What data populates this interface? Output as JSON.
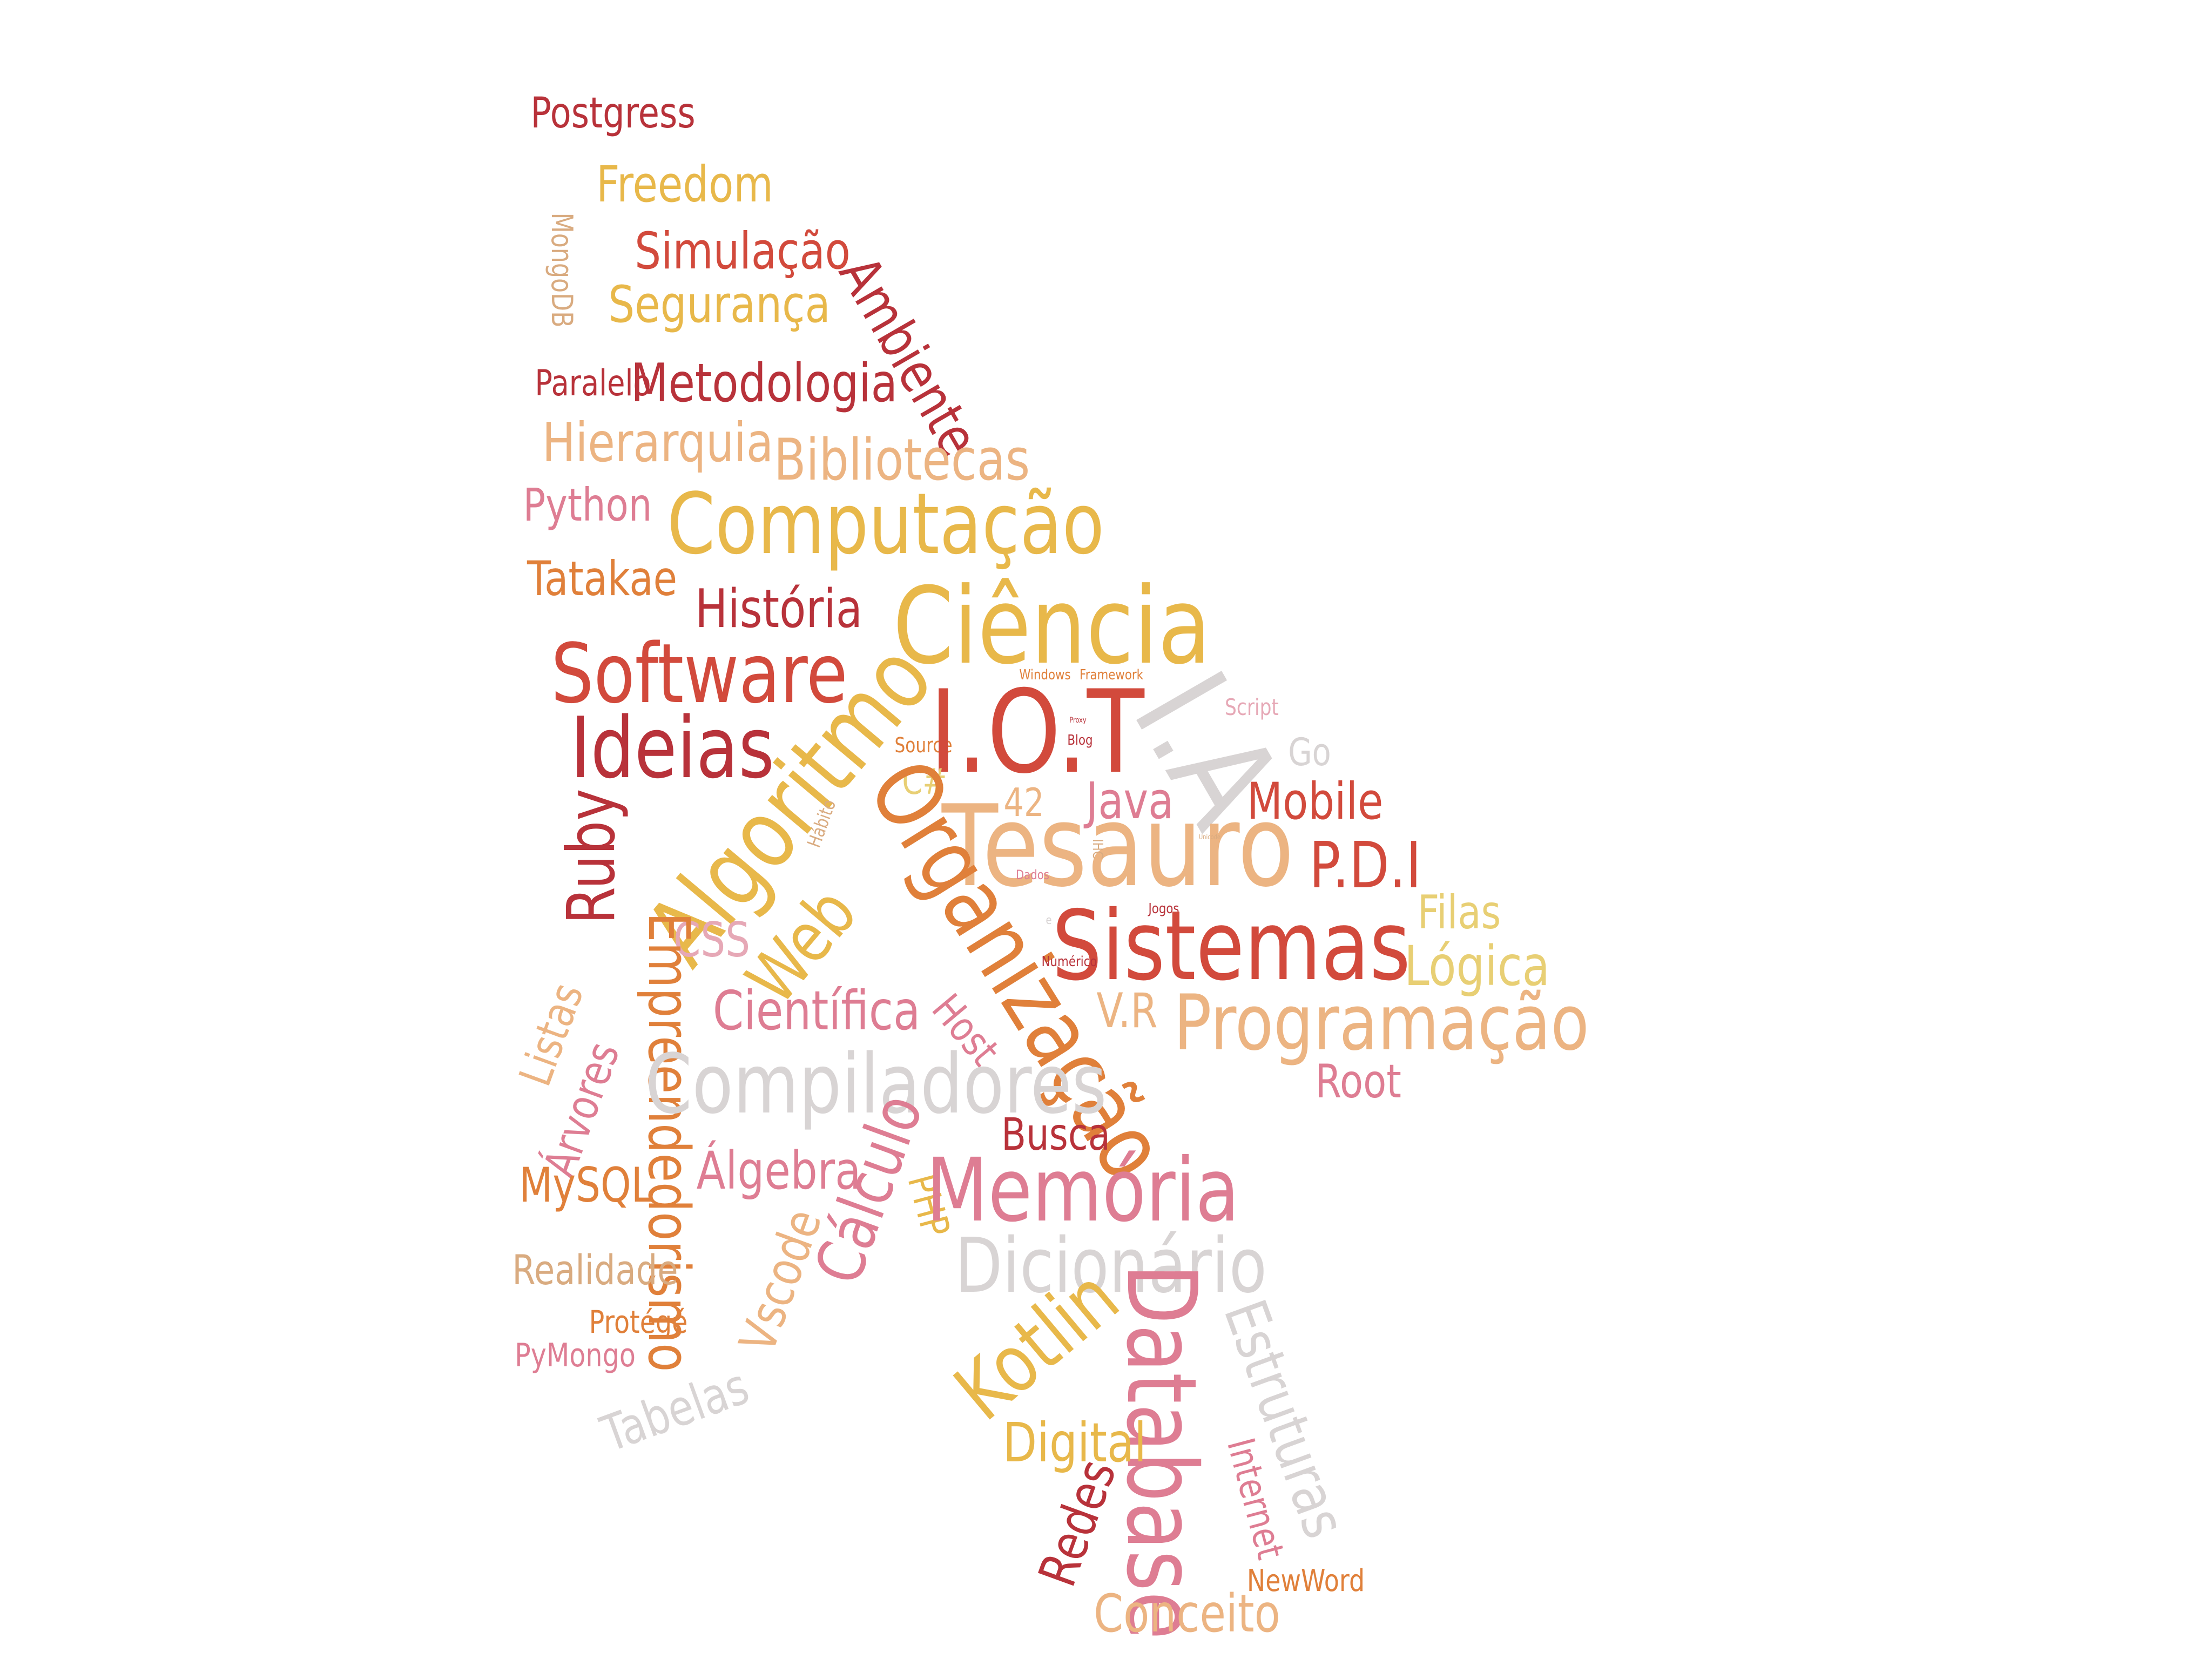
{
  "word_cloud": {
    "words": {
      "postgress": "Postgress",
      "freedom": "Freedom",
      "mongodb": "MongoDB",
      "simulacao": "Simulação",
      "seguranca": "Segurança",
      "ambiente": "Ambiente",
      "paralelo": "Paralelo",
      "metodologia": "Metodologia",
      "hierarquia": "Hierarquia",
      "bibliotecas": "Bibliotecas",
      "python": "Python",
      "computacao": "Computação",
      "tatakae": "Tatakae",
      "historia": "História",
      "ciencia": "Ciência",
      "software": "Software",
      "windows": "Windows",
      "framework": "Framework",
      "ia": "I.A",
      "script": "Script",
      "proxy": "Proxy",
      "blog": "Blog",
      "source": "Source",
      "go": "Go",
      "ideias": "Ideias",
      "iot": "I.O.T",
      "algoritmo": "Algoritmo",
      "csharp": "C#",
      "java": "Java",
      "mobile": "Mobile",
      "n42": "42",
      "ruby": "Ruby",
      "habito": "Hábito",
      "tesauro": "Tesauro",
      "pdi": "P.D.I",
      "ihc": "IHC",
      "unicode": "Unicode",
      "organizacao": "Organização",
      "dados": "Dados",
      "jogos": "Jogos",
      "filas": "Filas",
      "css": "CSS",
      "web": "Web",
      "e": "e",
      "sistemas": "Sistemas",
      "logica": "Lógica",
      "numerico": "Numérico",
      "empreendedorismo": "Empreendedorismo",
      "cientifica": "Científica",
      "host": "Host",
      "vr": "V.R",
      "programacao": "Programação",
      "listas": "Listas",
      "compiladores": "Compiladores",
      "root": "Root",
      "arvores": "Árvores",
      "busca": "Busca",
      "calculo": "Cálculo",
      "mysql": "MySQL",
      "algebra": "Álgebra",
      "php": "PHP",
      "memoria": "Memória",
      "vscode": "Vscode",
      "dicionario": "Dicionário",
      "realidade": "Realidade",
      "estruturas": "Estruturas",
      "database": "Database",
      "kotlin": "Kotlin",
      "protege": "Protégé",
      "pymongo": "PyMongo",
      "tabelas": "Tabelas",
      "digital": "Digital",
      "internet": "Internet",
      "redes": "Redes",
      "newword": "NewWord",
      "conceito": "Conceito"
    },
    "palette": {
      "dark_red": "#b8323a",
      "red": "#d24a3c",
      "orange": "#e0803a",
      "yellow": "#e8b84a",
      "light_yellow": "#e8cf74",
      "peach": "#ecb482",
      "pink": "#de7d93",
      "light_pink": "#e6a8b6",
      "gray": "#d8d4d4",
      "tan": "#d9ab80"
    }
  }
}
